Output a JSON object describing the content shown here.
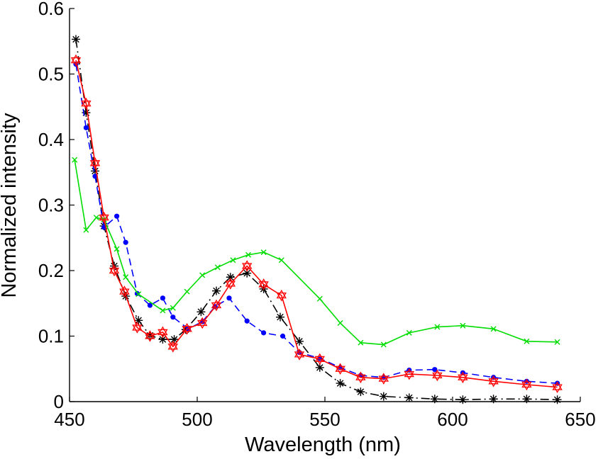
{
  "chart_data": {
    "type": "line",
    "title": "",
    "xlabel": "Wavelength (nm)",
    "ylabel": "Normalized intensity",
    "xlim": [
      450,
      650
    ],
    "ylim": [
      0,
      0.6
    ],
    "xticks": [
      450,
      500,
      550,
      600,
      650
    ],
    "yticks": [
      0,
      0.1,
      0.2,
      0.3,
      0.4,
      0.5,
      0.6
    ],
    "xtick_labels": [
      "450",
      "500",
      "550",
      "600",
      "650"
    ],
    "ytick_labels": [
      "0",
      "0.1",
      "0.2",
      "0.3",
      "0.4",
      "0.5",
      "0.6"
    ],
    "grid": false,
    "legend": "none",
    "series": [
      {
        "color": "#000000",
        "line_style": "dash-dot",
        "marker": "asterisk",
        "x": [
          452.5,
          456.5,
          460,
          463.5,
          467.5,
          472,
          477,
          481.5,
          486.5,
          491,
          495.5,
          501.5,
          507.5,
          513,
          519.5,
          526,
          532.5,
          540,
          548,
          556,
          564,
          573,
          583,
          593,
          604,
          616,
          629,
          641
        ],
        "y": [
          0.553,
          0.441,
          0.352,
          0.268,
          0.207,
          0.161,
          0.124,
          0.101,
          0.095,
          0.095,
          0.11,
          0.137,
          0.169,
          0.19,
          0.196,
          0.172,
          0.129,
          0.092,
          0.052,
          0.028,
          0.015,
          0.008,
          0.006,
          0.004,
          0.003,
          0.004,
          0.004,
          0.003
        ]
      },
      {
        "color": "#0000ff",
        "line_style": "dashed",
        "marker": "dot",
        "x": [
          452.5,
          456.5,
          460,
          463.5,
          468.5,
          472,
          476.5,
          481.5,
          486.5,
          490.5,
          496.5,
          502,
          507,
          512.5,
          519.5,
          526,
          533.5,
          540,
          548,
          556,
          564,
          573,
          583,
          593,
          604,
          616,
          629,
          641
        ],
        "y": [
          0.515,
          0.418,
          0.344,
          0.266,
          0.283,
          0.243,
          0.165,
          0.147,
          0.158,
          0.129,
          0.111,
          0.122,
          0.145,
          0.158,
          0.123,
          0.105,
          0.1,
          0.075,
          0.066,
          0.052,
          0.04,
          0.037,
          0.048,
          0.049,
          0.044,
          0.037,
          0.031,
          0.028
        ]
      },
      {
        "color": "#00dd00",
        "line_style": "solid",
        "marker": "x",
        "x": [
          452,
          456.5,
          460.5,
          463.5,
          468.5,
          472,
          477,
          486.5,
          490.5,
          496,
          502,
          508,
          514,
          520,
          526,
          533,
          548,
          556,
          564,
          573,
          583,
          594,
          604,
          616,
          629,
          641
        ],
        "y": [
          0.369,
          0.262,
          0.281,
          0.278,
          0.233,
          0.19,
          0.164,
          0.139,
          0.143,
          0.168,
          0.193,
          0.205,
          0.216,
          0.224,
          0.228,
          0.216,
          0.157,
          0.12,
          0.09,
          0.087,
          0.105,
          0.114,
          0.116,
          0.111,
          0.092,
          0.091
        ]
      },
      {
        "color": "#ff0000",
        "line_style": "solid",
        "marker": "hexagram",
        "x": [
          452.5,
          456.5,
          460,
          463.5,
          467.5,
          471.5,
          476.5,
          481.5,
          486.5,
          490.5,
          496,
          502,
          507.5,
          513,
          519.5,
          526,
          533,
          540,
          548,
          556,
          564,
          573,
          583,
          594,
          604,
          616,
          629,
          641
        ],
        "y": [
          0.521,
          0.455,
          0.364,
          0.281,
          0.2,
          0.168,
          0.113,
          0.1,
          0.106,
          0.084,
          0.111,
          0.12,
          0.147,
          0.18,
          0.207,
          0.179,
          0.162,
          0.072,
          0.065,
          0.05,
          0.037,
          0.035,
          0.042,
          0.04,
          0.037,
          0.031,
          0.026,
          0.022
        ]
      }
    ]
  }
}
